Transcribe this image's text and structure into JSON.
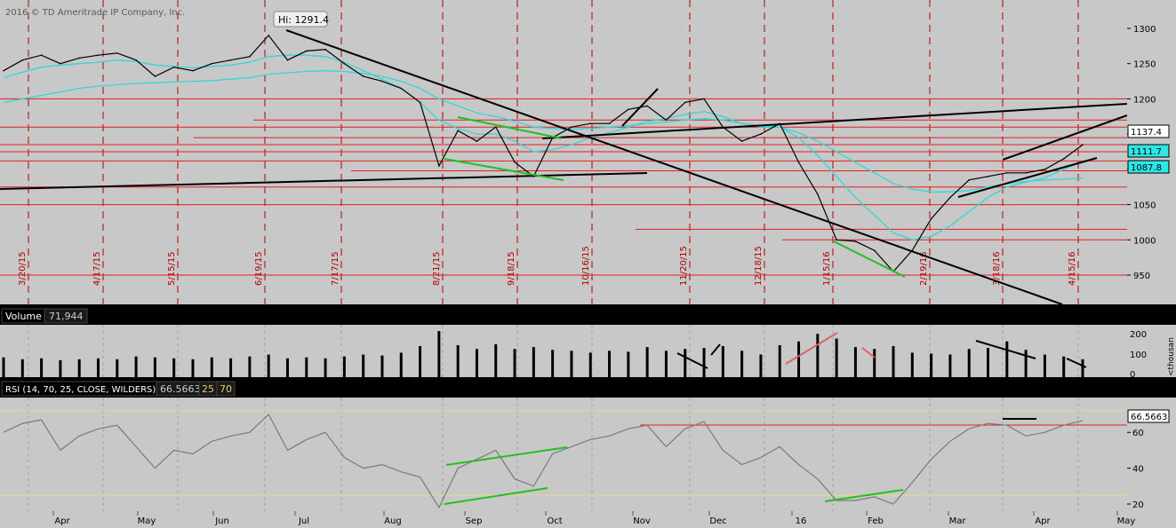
{
  "watermark": "2016 © TD Ameritrade IP Company, Inc.",
  "price_panel": {
    "hi_callout": "Hi: 1291.4",
    "hi_value": 1291.4,
    "y_ticks": [
      1300,
      1250,
      1200,
      1150,
      1100,
      1050,
      1000,
      950
    ],
    "badges": [
      {
        "text": "1137.4",
        "value": 1137.4,
        "style": "white"
      },
      {
        "text": "1111.7",
        "value": 1111.7,
        "style": "cyan"
      },
      {
        "text": "1087.8",
        "value": 1087.8,
        "style": "cyan"
      }
    ],
    "cycle_dates": [
      "3/20/15",
      "4/17/15",
      "5/15/15",
      "6/19/15",
      "7/17/15",
      "8/21/15",
      "9/18/15",
      "10/16/15",
      "11/20/15",
      "12/18/15",
      "1/15/16",
      "2/19/16",
      "3/18/16",
      "4/15/16"
    ]
  },
  "volume_panel": {
    "title": "Volume",
    "value": "71,944",
    "y_ticks": [
      "200",
      "100",
      "0"
    ],
    "unit": "<thousan"
  },
  "rsi_panel": {
    "title": "RSI (14, 70, 25, CLOSE, WILDERS)",
    "value": "66.5663",
    "oversold": "25",
    "overbought": "70",
    "y_ticks": [
      60,
      40,
      20
    ],
    "badge": "66.5663"
  },
  "x_axis": {
    "labels": [
      "Apr",
      "May",
      "Jun",
      "Jul",
      "Aug",
      "Sep",
      "Oct",
      "Nov",
      "Dec",
      "16",
      "Feb",
      "Mar",
      "Apr",
      "May"
    ]
  },
  "colors": {
    "background": "#c8c8c8",
    "price_line": "#000000",
    "moving_average": "#33d6d6",
    "horizontal_level": "#e02020",
    "cycle_line": "#b00000",
    "trend_green": "#22c022",
    "rsi_line": "#7a7a7a"
  },
  "chart_data": {
    "type": "line",
    "x": [
      "2015-03-16",
      "2015-03-23",
      "2015-03-30",
      "2015-04-06",
      "2015-04-13",
      "2015-04-20",
      "2015-04-27",
      "2015-05-04",
      "2015-05-11",
      "2015-05-18",
      "2015-05-25",
      "2015-06-01",
      "2015-06-08",
      "2015-06-15",
      "2015-06-22",
      "2015-06-29",
      "2015-07-06",
      "2015-07-13",
      "2015-07-20",
      "2015-07-27",
      "2015-08-03",
      "2015-08-10",
      "2015-08-17",
      "2015-08-24",
      "2015-08-31",
      "2015-09-07",
      "2015-09-14",
      "2015-09-21",
      "2015-09-28",
      "2015-10-05",
      "2015-10-12",
      "2015-10-19",
      "2015-10-26",
      "2015-11-02",
      "2015-11-09",
      "2015-11-16",
      "2015-11-23",
      "2015-11-30",
      "2015-12-07",
      "2015-12-14",
      "2015-12-21",
      "2015-12-28",
      "2016-01-04",
      "2016-01-11",
      "2016-01-18",
      "2016-01-25",
      "2016-02-01",
      "2016-02-08",
      "2016-02-15",
      "2016-02-22",
      "2016-02-29",
      "2016-03-07",
      "2016-03-14",
      "2016-03-21",
      "2016-03-28",
      "2016-04-04",
      "2016-04-11",
      "2016-04-18"
    ],
    "series": [
      {
        "values": [
          1240,
          1255,
          1262,
          1250,
          1258,
          1262,
          1265,
          1255,
          1232,
          1245,
          1240,
          1250,
          1255,
          1260,
          1290,
          1255,
          1268,
          1270,
          1250,
          1232,
          1225,
          1215,
          1195,
          1105,
          1155,
          1140,
          1160,
          1110,
          1090,
          1145,
          1160,
          1165,
          1165,
          1185,
          1190,
          1170,
          1195,
          1200,
          1160,
          1140,
          1150,
          1165,
          1110,
          1065,
          1000,
          998,
          985,
          955,
          985,
          1030,
          1060,
          1085,
          1090,
          1095,
          1095,
          1100,
          1115,
          1135
        ]
      },
      {
        "values": [
          1230,
          1238,
          1245,
          1248,
          1250,
          1252,
          1255,
          1253,
          1248,
          1246,
          1244,
          1246,
          1248,
          1252,
          1260,
          1262,
          1262,
          1260,
          1252,
          1240,
          1228,
          1215,
          1195,
          1170,
          1158,
          1150,
          1150,
          1140,
          1125,
          1128,
          1135,
          1145,
          1152,
          1160,
          1168,
          1172,
          1178,
          1182,
          1175,
          1165,
          1160,
          1160,
          1145,
          1120,
          1090,
          1060,
          1035,
          1010,
          1000,
          1005,
          1020,
          1040,
          1060,
          1075,
          1082,
          1088,
          1100,
          1111.7
        ]
      },
      {
        "values": [
          1195,
          1200,
          1205,
          1210,
          1215,
          1218,
          1220,
          1222,
          1223,
          1224,
          1225,
          1226,
          1228,
          1230,
          1235,
          1237,
          1239,
          1240,
          1239,
          1236,
          1232,
          1225,
          1215,
          1200,
          1190,
          1180,
          1175,
          1168,
          1160,
          1158,
          1157,
          1158,
          1160,
          1162,
          1165,
          1167,
          1170,
          1172,
          1170,
          1165,
          1162,
          1160,
          1152,
          1140,
          1125,
          1110,
          1095,
          1080,
          1072,
          1068,
          1068,
          1070,
          1075,
          1080,
          1083,
          1085,
          1086,
          1087.8
        ]
      }
    ],
    "horizontal_levels": [
      1200,
      1170,
      1160,
      1145,
      1135,
      1125,
      1112,
      1098,
      1075,
      1050,
      1015,
      1000,
      950
    ],
    "rsi_values": [
      60,
      65,
      67,
      50,
      58,
      62,
      64,
      52,
      40,
      50,
      48,
      55,
      58,
      60,
      70,
      50,
      56,
      60,
      46,
      40,
      42,
      38,
      35,
      18,
      40,
      45,
      50,
      34,
      30,
      48,
      52,
      56,
      58,
      62,
      64,
      52,
      62,
      66,
      50,
      42,
      46,
      52,
      42,
      34,
      22,
      22,
      24,
      20,
      32,
      45,
      55,
      62,
      65,
      64,
      58,
      60,
      64,
      66.5663
    ],
    "volume_values": [
      105,
      95,
      100,
      90,
      95,
      100,
      95,
      110,
      105,
      100,
      95,
      105,
      100,
      110,
      120,
      100,
      105,
      100,
      110,
      120,
      115,
      130,
      165,
      245,
      170,
      150,
      175,
      150,
      160,
      145,
      140,
      130,
      140,
      135,
      160,
      140,
      150,
      155,
      165,
      140,
      120,
      170,
      190,
      230,
      205,
      160,
      150,
      165,
      130,
      125,
      120,
      150,
      155,
      190,
      145,
      120,
      110,
      95
    ],
    "price_ylim": [
      920,
      1330
    ],
    "volume_ylim": [
      0,
      250
    ],
    "rsi_ylim": [
      15,
      78
    ],
    "grid": false
  }
}
